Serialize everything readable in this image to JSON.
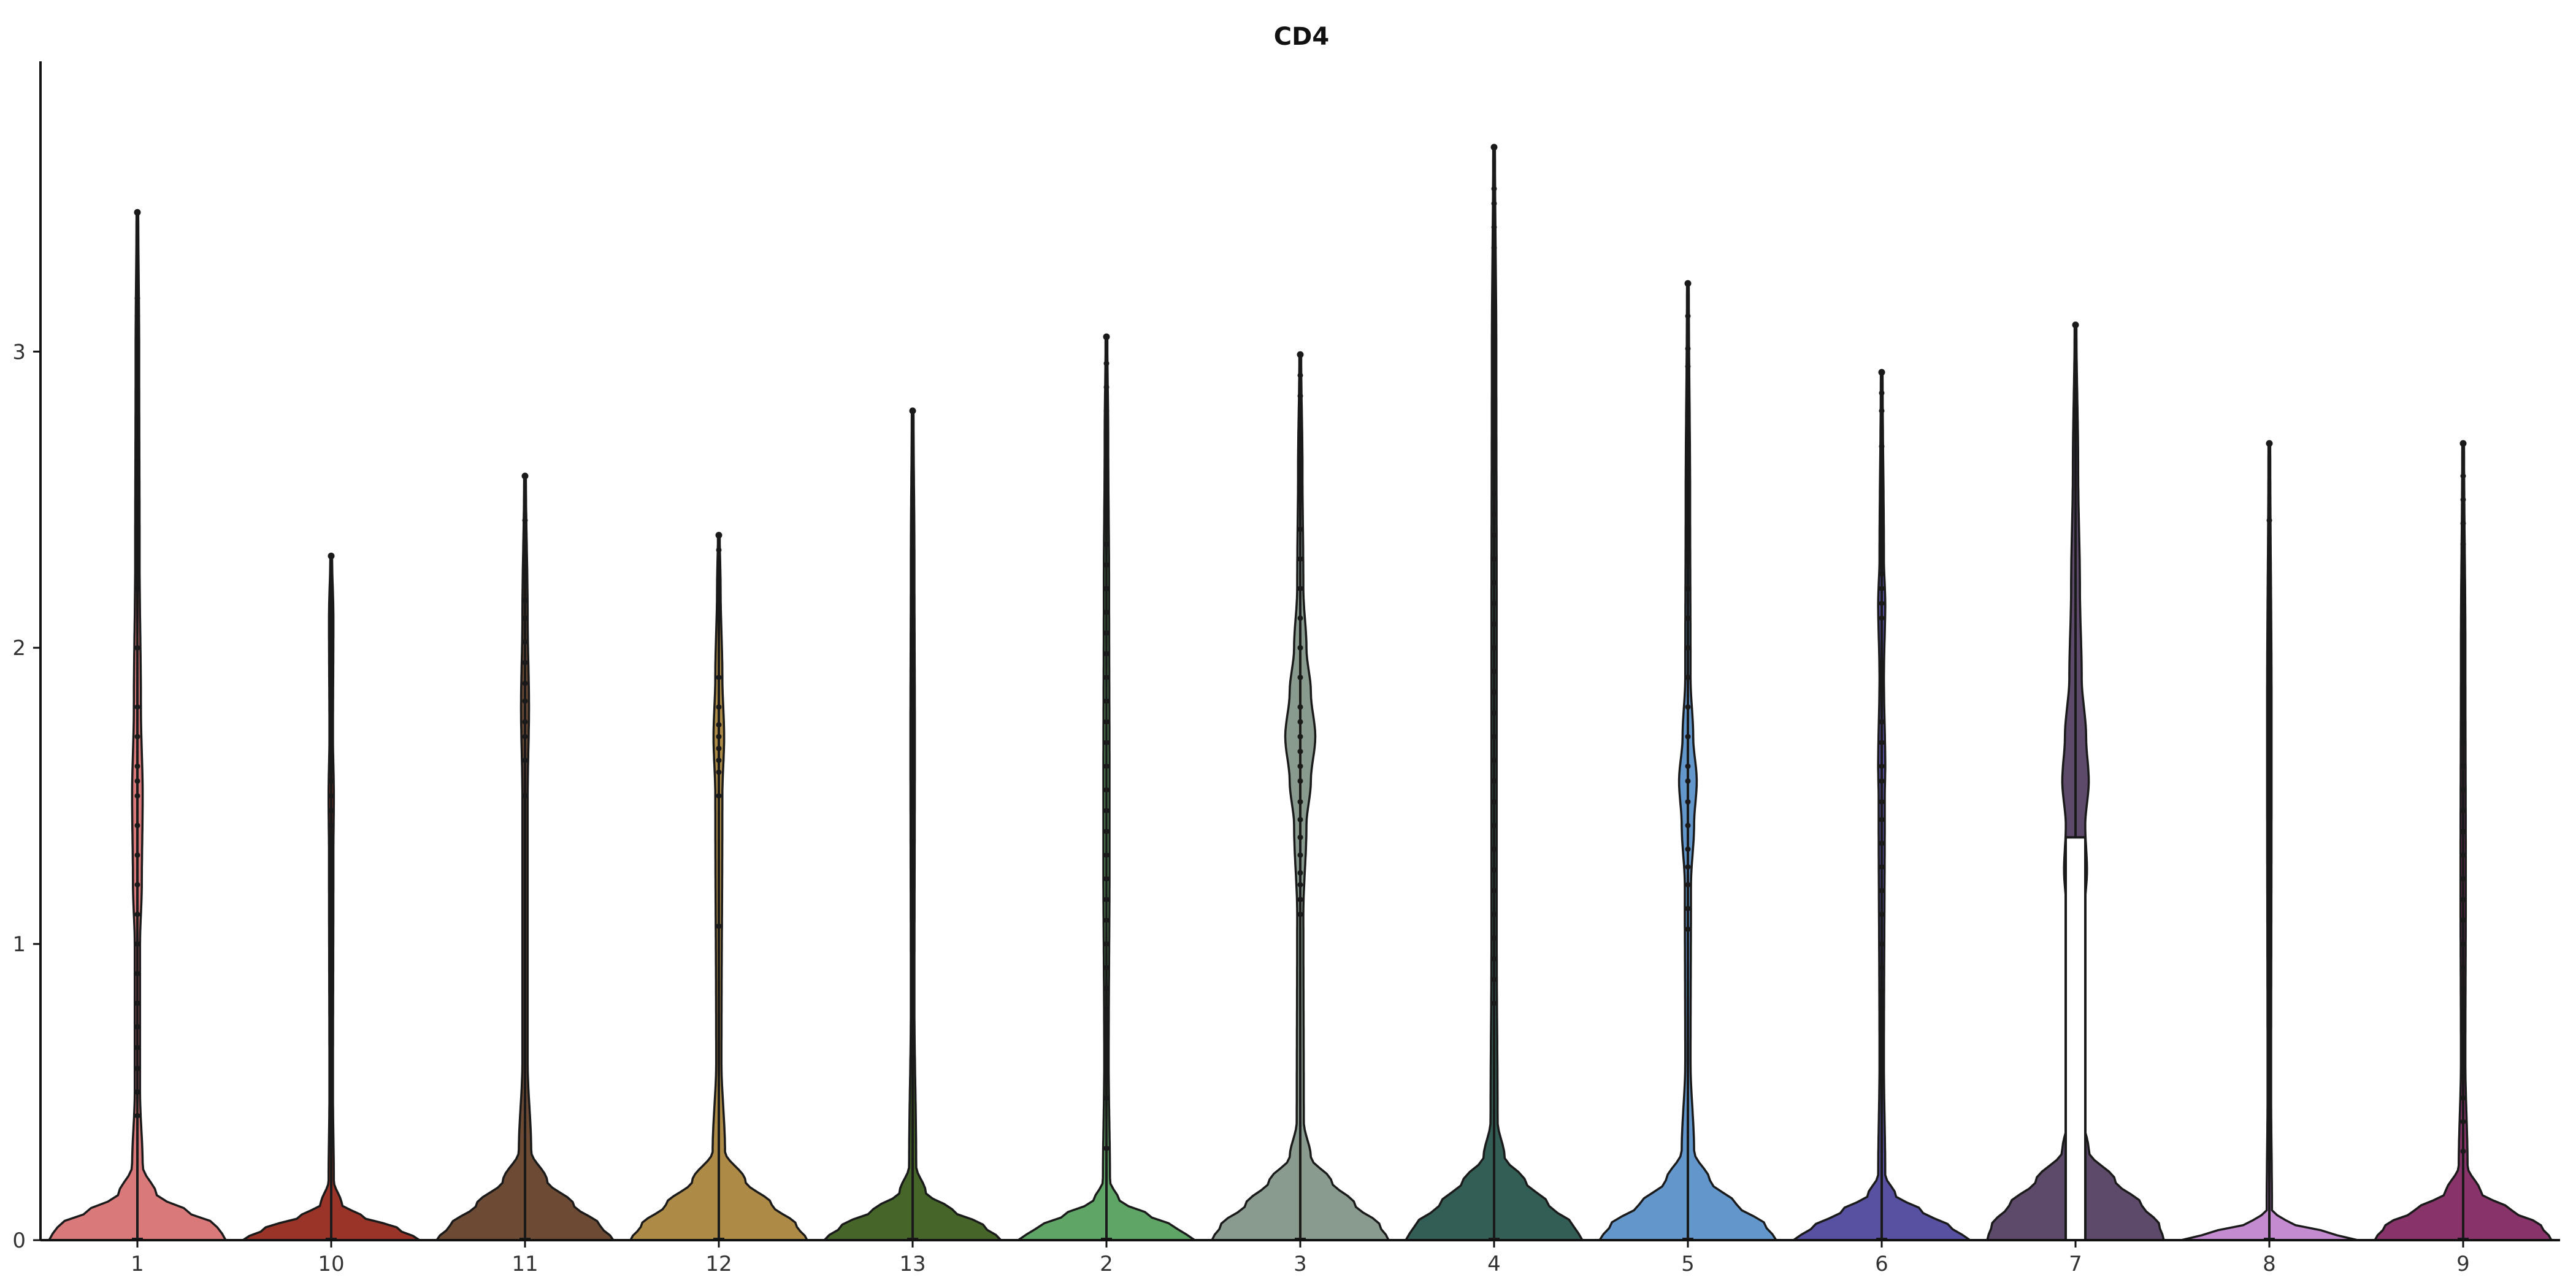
{
  "chart_data": {
    "type": "violin",
    "title": "CD4",
    "xlabel": "",
    "ylabel": "",
    "ylim": [
      0,
      3.98
    ],
    "y_ticks": [
      0,
      1,
      2,
      3
    ],
    "grid": false,
    "legend": "none",
    "categories": [
      "1",
      "10",
      "11",
      "12",
      "13",
      "2",
      "3",
      "4",
      "5",
      "6",
      "7",
      "8",
      "9"
    ],
    "series": [
      {
        "category": "1",
        "color": "#d9797a",
        "max": 3.47,
        "median": 0,
        "base_width": 0.93,
        "density": [
          [
            0,
            1
          ],
          [
            0.05,
            0.9
          ],
          [
            0.1,
            0.55
          ],
          [
            0.15,
            0.22
          ],
          [
            0.25,
            0.06
          ],
          [
            0.5,
            0.03
          ],
          [
            1.0,
            0.03
          ],
          [
            1.2,
            0.05
          ],
          [
            1.5,
            0.06
          ],
          [
            1.8,
            0.04
          ],
          [
            2.3,
            0.025
          ],
          [
            3.0,
            0.02
          ],
          [
            3.47,
            0.01
          ]
        ],
        "points": [
          0.42,
          0.5,
          0.58,
          0.65,
          0.72,
          0.8,
          0.9,
          1.0,
          1.1,
          1.2,
          1.3,
          1.4,
          1.5,
          1.55,
          1.6,
          1.7,
          1.8,
          2.0,
          2.2,
          2.4,
          2.5,
          2.6,
          2.7,
          2.8,
          2.9,
          2.95,
          3.05,
          3.12,
          3.18,
          3.47
        ]
      },
      {
        "category": "10",
        "color": "#9b3428",
        "max": 2.31,
        "median": 0,
        "base_width": 0.93,
        "density": [
          [
            0,
            1
          ],
          [
            0.04,
            0.75
          ],
          [
            0.08,
            0.35
          ],
          [
            0.12,
            0.12
          ],
          [
            0.2,
            0.03
          ],
          [
            0.5,
            0.02
          ],
          [
            1.3,
            0.025
          ],
          [
            1.5,
            0.03
          ],
          [
            1.7,
            0.02
          ],
          [
            2.1,
            0.025
          ],
          [
            2.31,
            0.01
          ]
        ],
        "points": [
          0.94,
          1.21,
          1.27,
          1.36,
          1.4,
          1.45,
          1.5,
          1.55,
          1.6,
          1.65,
          1.78,
          1.87,
          1.96,
          2.02,
          2.07,
          2.12,
          2.15,
          2.31
        ]
      },
      {
        "category": "11",
        "color": "#6c4a33",
        "max": 2.58,
        "median": 0,
        "base_width": 0.93,
        "density": [
          [
            0,
            1
          ],
          [
            0.05,
            0.85
          ],
          [
            0.12,
            0.55
          ],
          [
            0.2,
            0.25
          ],
          [
            0.3,
            0.07
          ],
          [
            0.6,
            0.03
          ],
          [
            1.5,
            0.03
          ],
          [
            1.8,
            0.045
          ],
          [
            2.1,
            0.03
          ],
          [
            2.58,
            0.01
          ]
        ],
        "points": [
          1.5,
          1.62,
          1.7,
          1.75,
          1.82,
          1.88,
          1.95,
          2.02,
          2.1,
          2.16,
          2.26,
          2.43,
          2.58
        ]
      },
      {
        "category": "12",
        "color": "#ae8a47",
        "max": 2.38,
        "median": 0,
        "base_width": 0.93,
        "density": [
          [
            0,
            1
          ],
          [
            0.05,
            0.88
          ],
          [
            0.12,
            0.6
          ],
          [
            0.2,
            0.3
          ],
          [
            0.3,
            0.07
          ],
          [
            0.6,
            0.03
          ],
          [
            1.5,
            0.04
          ],
          [
            1.7,
            0.06
          ],
          [
            1.9,
            0.04
          ],
          [
            2.2,
            0.02
          ],
          [
            2.38,
            0.01
          ]
        ],
        "points": [
          1.06,
          1.5,
          1.58,
          1.62,
          1.66,
          1.7,
          1.74,
          1.8,
          1.9,
          2.2,
          2.33,
          2.38
        ]
      },
      {
        "category": "13",
        "color": "#456628",
        "max": 2.8,
        "median": 0,
        "base_width": 0.93,
        "density": [
          [
            0,
            1
          ],
          [
            0.05,
            0.8
          ],
          [
            0.1,
            0.45
          ],
          [
            0.16,
            0.15
          ],
          [
            0.25,
            0.04
          ],
          [
            0.8,
            0.02
          ],
          [
            1.7,
            0.025
          ],
          [
            2.3,
            0.02
          ],
          [
            2.8,
            0.01
          ]
        ],
        "points": [
          1.42,
          1.48,
          1.7,
          1.74,
          1.78,
          2.34,
          2.8
        ]
      },
      {
        "category": "2",
        "color": "#5ea566",
        "max": 3.05,
        "median": 0,
        "base_width": 0.93,
        "density": [
          [
            0,
            1
          ],
          [
            0.04,
            0.8
          ],
          [
            0.09,
            0.45
          ],
          [
            0.13,
            0.15
          ],
          [
            0.2,
            0.04
          ],
          [
            0.6,
            0.025
          ],
          [
            1.3,
            0.035
          ],
          [
            1.5,
            0.035
          ],
          [
            2.2,
            0.03
          ],
          [
            2.7,
            0.02
          ],
          [
            3.05,
            0.01
          ]
        ],
        "points": [
          0.31,
          0.48,
          0.56,
          0.63,
          0.7,
          0.78,
          0.85,
          0.92,
          1.0,
          1.08,
          1.15,
          1.22,
          1.3,
          1.38,
          1.45,
          1.52,
          1.6,
          1.68,
          1.75,
          1.82,
          1.9,
          1.98,
          2.05,
          2.12,
          2.2,
          2.28,
          2.35,
          2.42,
          2.5,
          2.58,
          2.66,
          2.74,
          2.8,
          2.88,
          2.96,
          3.05
        ]
      },
      {
        "category": "3",
        "color": "#889b8e",
        "max": 2.99,
        "median": 0,
        "base_width": 0.93,
        "density": [
          [
            0,
            1
          ],
          [
            0.05,
            0.9
          ],
          [
            0.12,
            0.62
          ],
          [
            0.2,
            0.35
          ],
          [
            0.28,
            0.12
          ],
          [
            0.4,
            0.04
          ],
          [
            1.1,
            0.035
          ],
          [
            1.4,
            0.07
          ],
          [
            1.55,
            0.12
          ],
          [
            1.7,
            0.17
          ],
          [
            1.85,
            0.12
          ],
          [
            2.0,
            0.07
          ],
          [
            2.2,
            0.035
          ],
          [
            2.6,
            0.025
          ],
          [
            2.99,
            0.01
          ]
        ],
        "points": [
          1.1,
          1.15,
          1.2,
          1.24,
          1.3,
          1.36,
          1.42,
          1.48,
          1.55,
          1.6,
          1.65,
          1.7,
          1.75,
          1.8,
          1.9,
          2.0,
          2.1,
          2.2,
          2.3,
          2.4,
          2.5,
          2.6,
          2.7,
          2.75,
          2.85,
          2.92,
          2.99
        ]
      },
      {
        "category": "4",
        "color": "#335e55",
        "max": 3.69,
        "median": 0,
        "base_width": 0.93,
        "density": [
          [
            0,
            1
          ],
          [
            0.05,
            0.9
          ],
          [
            0.12,
            0.62
          ],
          [
            0.2,
            0.35
          ],
          [
            0.28,
            0.12
          ],
          [
            0.4,
            0.04
          ],
          [
            1.0,
            0.03
          ],
          [
            2.0,
            0.03
          ],
          [
            3.0,
            0.025
          ],
          [
            3.69,
            0.01
          ]
        ],
        "points": [
          0.8,
          0.88,
          0.95,
          1.02,
          1.1,
          1.18,
          1.25,
          1.32,
          1.4,
          1.48,
          1.55,
          1.62,
          1.7,
          1.78,
          1.85,
          1.92,
          2.0,
          2.08,
          2.15,
          2.22,
          2.3,
          2.38,
          2.45,
          2.52,
          2.6,
          2.68,
          2.75,
          2.82,
          2.9,
          2.98,
          3.05,
          3.12,
          3.2,
          3.28,
          3.35,
          3.42,
          3.5,
          3.55,
          3.69
        ]
      },
      {
        "category": "5",
        "color": "#6397cb",
        "max": 3.23,
        "median": 0,
        "base_width": 0.93,
        "density": [
          [
            0,
            1
          ],
          [
            0.05,
            0.88
          ],
          [
            0.12,
            0.55
          ],
          [
            0.2,
            0.25
          ],
          [
            0.3,
            0.07
          ],
          [
            0.6,
            0.03
          ],
          [
            1.2,
            0.035
          ],
          [
            1.4,
            0.07
          ],
          [
            1.55,
            0.1
          ],
          [
            1.7,
            0.06
          ],
          [
            1.9,
            0.03
          ],
          [
            2.5,
            0.025
          ],
          [
            3.23,
            0.01
          ]
        ],
        "points": [
          1.05,
          1.12,
          1.2,
          1.26,
          1.32,
          1.4,
          1.48,
          1.55,
          1.6,
          1.7,
          1.8,
          1.9,
          2.0,
          2.1,
          2.2,
          2.3,
          2.4,
          2.5,
          2.6,
          2.7,
          2.8,
          2.95,
          3.01,
          3.12,
          3.23
        ]
      },
      {
        "category": "6",
        "color": "#5851a2",
        "max": 2.93,
        "median": 0,
        "base_width": 0.93,
        "density": [
          [
            0,
            1
          ],
          [
            0.04,
            0.8
          ],
          [
            0.1,
            0.45
          ],
          [
            0.15,
            0.16
          ],
          [
            0.22,
            0.04
          ],
          [
            0.6,
            0.025
          ],
          [
            1.5,
            0.035
          ],
          [
            1.6,
            0.04
          ],
          [
            1.9,
            0.025
          ],
          [
            2.15,
            0.04
          ],
          [
            2.3,
            0.025
          ],
          [
            2.93,
            0.01
          ]
        ],
        "points": [
          0.55,
          0.64,
          0.68,
          0.76,
          0.84,
          0.92,
          1.0,
          1.1,
          1.18,
          1.26,
          1.34,
          1.42,
          1.48,
          1.55,
          1.6,
          1.68,
          1.75,
          1.88,
          1.95,
          2.1,
          2.15,
          2.2,
          2.25,
          2.35,
          2.45,
          2.52,
          2.68,
          2.8,
          2.86,
          2.93
        ]
      },
      {
        "category": "7",
        "color": "#5d4a6a",
        "max": 3.09,
        "median": 0,
        "base_width": 0.93,
        "density": [
          [
            0,
            1
          ],
          [
            0.05,
            0.95
          ],
          [
            0.12,
            0.75
          ],
          [
            0.2,
            0.45
          ],
          [
            0.3,
            0.15
          ],
          [
            0.45,
            0.05
          ],
          [
            0.9,
            0.05
          ],
          [
            1.1,
            0.1
          ],
          [
            1.25,
            0.13
          ],
          [
            1.4,
            0.11
          ],
          [
            1.55,
            0.15
          ],
          [
            1.7,
            0.12
          ],
          [
            1.9,
            0.07
          ],
          [
            2.2,
            0.05
          ],
          [
            2.6,
            0.03
          ],
          [
            3.09,
            0.01
          ]
        ],
        "points": [],
        "box": {
          "q1": 0,
          "q3": 1.36
        }
      },
      {
        "category": "8",
        "color": "#c48bd0",
        "max": 2.69,
        "median": 0,
        "base_width": 0.93,
        "density": [
          [
            0,
            1
          ],
          [
            0.03,
            0.6
          ],
          [
            0.06,
            0.2
          ],
          [
            0.1,
            0.03
          ],
          [
            0.5,
            0.02
          ],
          [
            1.6,
            0.025
          ],
          [
            1.8,
            0.025
          ],
          [
            2.69,
            0.01
          ]
        ],
        "points": [
          1.04,
          1.33,
          1.6,
          1.65,
          1.7,
          1.75,
          1.8,
          1.85,
          1.9,
          1.95,
          2.2,
          2.43,
          2.69
        ]
      },
      {
        "category": "9",
        "color": "#88336a",
        "max": 2.69,
        "median": 0,
        "base_width": 0.93,
        "density": [
          [
            0,
            1
          ],
          [
            0.05,
            0.88
          ],
          [
            0.1,
            0.55
          ],
          [
            0.16,
            0.2
          ],
          [
            0.25,
            0.05
          ],
          [
            0.6,
            0.025
          ],
          [
            1.2,
            0.03
          ],
          [
            2.0,
            0.025
          ],
          [
            2.69,
            0.01
          ]
        ],
        "points": [
          0.3,
          0.4,
          0.48,
          0.55,
          0.62,
          0.7,
          0.78,
          0.85,
          0.92,
          1.0,
          1.08,
          1.15,
          1.22,
          1.3,
          1.38,
          1.45,
          1.52,
          1.6,
          1.68,
          1.75,
          1.82,
          1.9,
          1.98,
          2.05,
          2.12,
          2.2,
          2.28,
          2.35,
          2.42,
          2.5,
          2.58,
          2.69
        ]
      }
    ]
  }
}
